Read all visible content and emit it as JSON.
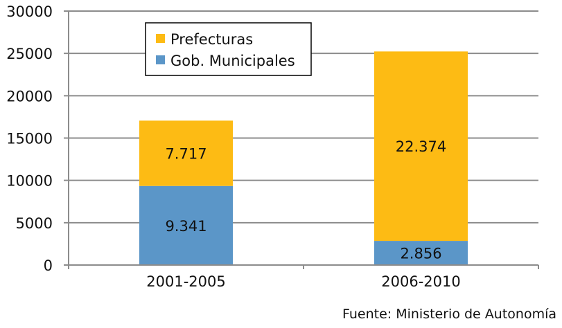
{
  "chart_data": {
    "type": "bar",
    "stacked": true,
    "title": "",
    "xlabel": "",
    "ylabel": "",
    "ylim": [
      0,
      30000
    ],
    "yticks": [
      0,
      5000,
      10000,
      15000,
      20000,
      25000,
      30000
    ],
    "ytick_labels": [
      "0",
      "5000",
      "10000",
      "15000",
      "20000",
      "25000",
      "30000"
    ],
    "grid": true,
    "legend_position": "top-left",
    "categories": [
      "2001-2005",
      "2006-2010"
    ],
    "series": [
      {
        "name": "Gob. Municipales",
        "values": [
          9341,
          2856
        ],
        "labels": [
          "9.341",
          "2.856"
        ],
        "color": "#5b96c8"
      },
      {
        "name": "Prefecturas",
        "values": [
          7717,
          22374
        ],
        "labels": [
          "7.717",
          "22.374"
        ],
        "color": "#fdbb14"
      }
    ],
    "legend_order": [
      "Prefecturas",
      "Gob. Municipales"
    ]
  },
  "source_note": "Fuente: Ministerio de Autonomía",
  "colors": {
    "grid": "#8c8c8c",
    "axis": "#8c8c8c",
    "legend_border": "#000000"
  }
}
